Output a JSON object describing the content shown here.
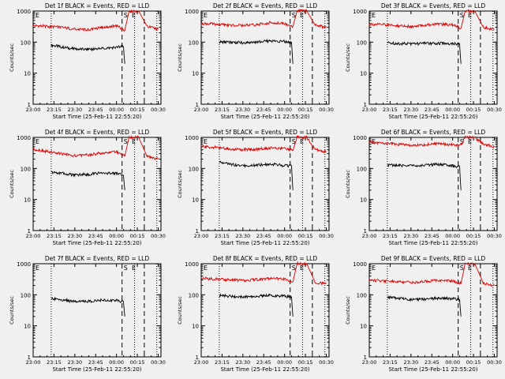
{
  "figure": {
    "background": "#f0f0f0",
    "colors": {
      "events": "#000000",
      "lld": "#dd0000",
      "axes": "#000000"
    }
  },
  "chart_data": [
    {
      "type": "line",
      "title": "Det 1f BLACK = Events, RED = LLD",
      "xlabel": "Start Time (25-Feb-11 22:55:20)",
      "ylabel": "Counts/sec",
      "xticks": [
        "23:00",
        "23:15",
        "23:30",
        "23:45",
        "00:00",
        "00:15",
        "00:30"
      ],
      "yticks": [
        "1",
        "10",
        "100",
        "1000"
      ],
      "yscale": "log",
      "ylim": [
        1,
        1000
      ],
      "markers": [
        "E",
        "S",
        "E"
      ],
      "series": [
        {
          "name": "Events",
          "color": "black",
          "x": [
            "23:13",
            "23:20",
            "23:30",
            "23:40",
            "23:50",
            "00:00",
            "00:05",
            "00:06"
          ],
          "values": [
            80,
            70,
            60,
            58,
            62,
            68,
            72,
            20
          ]
        },
        {
          "name": "LLD",
          "color": "red",
          "x": [
            "23:00",
            "23:10",
            "23:20",
            "23:30",
            "23:40",
            "23:50",
            "00:00",
            "00:06",
            "00:09",
            "00:16",
            "00:22",
            "00:30"
          ],
          "values": [
            340,
            320,
            300,
            260,
            250,
            300,
            330,
            240,
            1000,
            1000,
            320,
            260
          ]
        }
      ]
    },
    {
      "type": "line",
      "title": "Det 2f BLACK = Events, RED = LLD",
      "xlabel": "Start Time (25-Feb-11 22:55:20)",
      "ylabel": "Counts/sec",
      "xticks": [
        "23:00",
        "23:15",
        "23:30",
        "23:45",
        "00:00",
        "00:15",
        "00:30"
      ],
      "yticks": [
        "1",
        "10",
        "100",
        "1000"
      ],
      "yscale": "log",
      "ylim": [
        1,
        1000
      ],
      "markers": [
        "E",
        "S",
        "E"
      ],
      "series": [
        {
          "name": "Events",
          "color": "black",
          "x": [
            "23:13",
            "23:20",
            "23:30",
            "23:40",
            "23:50",
            "00:00",
            "00:05",
            "00:06"
          ],
          "values": [
            100,
            100,
            95,
            100,
            110,
            105,
            100,
            20
          ]
        },
        {
          "name": "LLD",
          "color": "red",
          "x": [
            "23:00",
            "23:10",
            "23:20",
            "23:30",
            "23:40",
            "23:50",
            "00:00",
            "00:06",
            "00:09",
            "00:16",
            "00:22",
            "00:30"
          ],
          "values": [
            400,
            380,
            350,
            340,
            360,
            420,
            400,
            320,
            1000,
            1000,
            350,
            300
          ]
        }
      ]
    },
    {
      "type": "line",
      "title": "Det 3f BLACK = Events, RED = LLD",
      "xlabel": "Start Time (25-Feb-11 22:55:20)",
      "ylabel": "Counts/sec",
      "xticks": [
        "23:00",
        "23:15",
        "23:30",
        "23:45",
        "00:00",
        "00:15",
        "00:30"
      ],
      "yticks": [
        "1",
        "10",
        "100",
        "1000"
      ],
      "yscale": "log",
      "ylim": [
        1,
        1000
      ],
      "markers": [
        "E",
        "S",
        "E"
      ],
      "series": [
        {
          "name": "Events",
          "color": "black",
          "x": [
            "23:13",
            "23:20",
            "23:30",
            "23:40",
            "23:50",
            "00:00",
            "00:05",
            "00:06"
          ],
          "values": [
            95,
            90,
            88,
            90,
            92,
            88,
            85,
            20
          ]
        },
        {
          "name": "LLD",
          "color": "red",
          "x": [
            "23:00",
            "23:10",
            "23:20",
            "23:30",
            "23:40",
            "23:50",
            "00:00",
            "00:06",
            "00:09",
            "00:16",
            "00:22",
            "00:30"
          ],
          "values": [
            380,
            360,
            340,
            320,
            350,
            380,
            360,
            280,
            1000,
            1000,
            300,
            250
          ]
        }
      ]
    },
    {
      "type": "line",
      "title": "Det 4f BLACK = Events, RED = LLD",
      "xlabel": "Start Time (25-Feb-11 22:55:20)",
      "ylabel": "Counts/sec",
      "xticks": [
        "23:00",
        "23:15",
        "23:30",
        "23:45",
        "00:00",
        "00:15",
        "00:30"
      ],
      "yticks": [
        "1",
        "10",
        "100",
        "1000"
      ],
      "yscale": "log",
      "ylim": [
        1,
        1000
      ],
      "markers": [
        "E",
        "S",
        "E"
      ],
      "series": [
        {
          "name": "Events",
          "color": "black",
          "x": [
            "23:13",
            "23:20",
            "23:30",
            "23:40",
            "23:50",
            "00:00",
            "00:05",
            "00:06"
          ],
          "values": [
            75,
            70,
            62,
            65,
            72,
            70,
            60,
            20
          ]
        },
        {
          "name": "LLD",
          "color": "red",
          "x": [
            "23:00",
            "23:10",
            "23:20",
            "23:30",
            "23:40",
            "23:50",
            "00:00",
            "00:06",
            "00:09",
            "00:16",
            "00:22",
            "00:30"
          ],
          "values": [
            420,
            350,
            300,
            260,
            270,
            320,
            340,
            250,
            1000,
            1000,
            240,
            200
          ]
        }
      ]
    },
    {
      "type": "line",
      "title": "Det 5f BLACK = Events, RED = LLD",
      "xlabel": "Start Time (25-Feb-11 22:55:20)",
      "ylabel": "Counts/sec",
      "xticks": [
        "23:00",
        "23:15",
        "23:30",
        "23:45",
        "00:00",
        "00:15",
        "00:30"
      ],
      "yticks": [
        "1",
        "10",
        "100",
        "1000"
      ],
      "yscale": "log",
      "ylim": [
        1,
        1000
      ],
      "markers": [
        "E",
        "S",
        "E"
      ],
      "series": [
        {
          "name": "Events",
          "color": "black",
          "x": [
            "23:13",
            "23:20",
            "23:30",
            "23:40",
            "23:50",
            "00:00",
            "00:05",
            "00:06"
          ],
          "values": [
            160,
            140,
            120,
            130,
            135,
            125,
            120,
            20
          ]
        },
        {
          "name": "LLD",
          "color": "red",
          "x": [
            "23:00",
            "23:10",
            "23:20",
            "23:30",
            "23:40",
            "23:50",
            "00:00",
            "00:06",
            "00:09",
            "00:16",
            "00:22",
            "00:30"
          ],
          "values": [
            500,
            480,
            430,
            400,
            420,
            460,
            450,
            380,
            1000,
            1000,
            400,
            350
          ]
        }
      ]
    },
    {
      "type": "line",
      "title": "Det 6f BLACK = Events, RED = LLD",
      "xlabel": "Start Time (25-Feb-11 22:55:20)",
      "ylabel": "Counts/sec",
      "xticks": [
        "23:00",
        "23:15",
        "23:30",
        "23:45",
        "00:00",
        "00:15",
        "00:30"
      ],
      "yticks": [
        "1",
        "10",
        "100",
        "1000"
      ],
      "yscale": "log",
      "ylim": [
        1,
        1000
      ],
      "markers": [
        "E",
        "S",
        "E"
      ],
      "series": [
        {
          "name": "Events",
          "color": "black",
          "x": [
            "23:13",
            "23:20",
            "23:30",
            "23:40",
            "23:50",
            "00:00",
            "00:05",
            "00:06"
          ],
          "values": [
            130,
            125,
            120,
            130,
            135,
            120,
            115,
            20
          ]
        },
        {
          "name": "LLD",
          "color": "red",
          "x": [
            "23:00",
            "23:10",
            "23:20",
            "23:30",
            "23:40",
            "23:50",
            "00:00",
            "00:06",
            "00:09",
            "00:16",
            "00:22",
            "00:30"
          ],
          "values": [
            700,
            650,
            600,
            560,
            580,
            620,
            580,
            550,
            1000,
            1000,
            600,
            500
          ]
        }
      ]
    },
    {
      "type": "line",
      "title": "Det 7f BLACK = Events, RED = LLD",
      "xlabel": "Start Time (25-Feb-11 22:55:20)",
      "ylabel": "Counts/sec",
      "xticks": [
        "23:00",
        "23:15",
        "23:30",
        "23:45",
        "00:00",
        "00:15",
        "00:30"
      ],
      "yticks": [
        "1",
        "10",
        "100",
        "1000"
      ],
      "yscale": "log",
      "ylim": [
        1,
        1000
      ],
      "markers": [
        "E",
        "S",
        "E"
      ],
      "series": [
        {
          "name": "Events",
          "color": "black",
          "x": [
            "23:13",
            "23:20",
            "23:30",
            "23:40",
            "23:50",
            "00:00",
            "00:05",
            "00:06"
          ],
          "values": [
            75,
            70,
            60,
            62,
            68,
            65,
            60,
            20
          ]
        }
      ]
    },
    {
      "type": "line",
      "title": "Det 8f BLACK = Events, RED = LLD",
      "xlabel": "Start Time (25-Feb-11 22:55:20)",
      "ylabel": "Counts/sec",
      "xticks": [
        "23:00",
        "23:15",
        "23:30",
        "23:45",
        "00:00",
        "00:15",
        "00:30"
      ],
      "yticks": [
        "1",
        "10",
        "100",
        "1000"
      ],
      "yscale": "log",
      "ylim": [
        1,
        1000
      ],
      "markers": [
        "E",
        "S",
        "E"
      ],
      "series": [
        {
          "name": "Events",
          "color": "black",
          "x": [
            "23:13",
            "23:20",
            "23:30",
            "23:40",
            "23:50",
            "00:00",
            "00:05",
            "00:06"
          ],
          "values": [
            95,
            90,
            85,
            90,
            95,
            90,
            85,
            20
          ]
        },
        {
          "name": "LLD",
          "color": "red",
          "x": [
            "23:00",
            "23:10",
            "23:20",
            "23:30",
            "23:40",
            "23:50",
            "00:00",
            "00:06",
            "00:09",
            "00:16",
            "00:22",
            "00:30"
          ],
          "values": [
            340,
            320,
            300,
            290,
            310,
            330,
            320,
            260,
            1000,
            1000,
            250,
            230
          ]
        }
      ]
    },
    {
      "type": "line",
      "title": "Det 9f BLACK = Events, RED = LLD",
      "xlabel": "Start Time (25-Feb-11 22:55:20)",
      "ylabel": "Counts/sec",
      "xticks": [
        "23:00",
        "23:15",
        "23:30",
        "23:45",
        "00:00",
        "00:15",
        "00:30"
      ],
      "yticks": [
        "1",
        "10",
        "100",
        "1000"
      ],
      "yscale": "log",
      "ylim": [
        1,
        1000
      ],
      "markers": [
        "E",
        "S",
        "E"
      ],
      "series": [
        {
          "name": "Events",
          "color": "black",
          "x": [
            "23:13",
            "23:20",
            "23:30",
            "23:40",
            "23:50",
            "00:00",
            "00:05",
            "00:06"
          ],
          "values": [
            85,
            78,
            70,
            72,
            78,
            75,
            70,
            20
          ]
        },
        {
          "name": "LLD",
          "color": "red",
          "x": [
            "23:00",
            "23:10",
            "23:20",
            "23:30",
            "23:40",
            "23:50",
            "00:00",
            "00:06",
            "00:09",
            "00:16",
            "00:22",
            "00:30"
          ],
          "values": [
            300,
            280,
            260,
            250,
            270,
            290,
            270,
            230,
            1000,
            1000,
            240,
            200
          ]
        }
      ]
    }
  ]
}
